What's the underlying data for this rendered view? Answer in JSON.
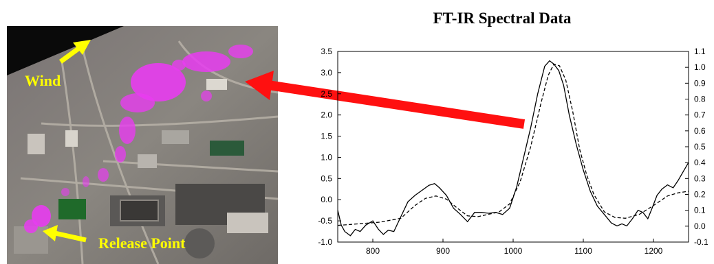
{
  "figure": {
    "chart_title": "FT-IR Spectral Data",
    "photo": {
      "wind_label": "Wind",
      "release_label": "Release Point"
    },
    "colors": {
      "plume": "#e83cf0",
      "labels": "#ffff00",
      "pointer_arrow": "#ff1010"
    }
  },
  "chart_data": {
    "type": "line",
    "title": "FT-IR Spectral Data",
    "xlabel": "",
    "ylabel": "",
    "xlim": [
      750,
      1250
    ],
    "ylim": [
      -1.0,
      3.5
    ],
    "y2lim": [
      -0.1,
      1.1
    ],
    "x_ticks": [
      800,
      900,
      1000,
      1100,
      1200
    ],
    "y_ticks": [
      -1.0,
      -0.5,
      0.0,
      0.5,
      1.0,
      1.5,
      2.0,
      2.5,
      3.0,
      3.5
    ],
    "y2_ticks": [
      -0.1,
      0.0,
      0.1,
      0.2,
      0.3,
      0.4,
      0.5,
      0.6,
      0.7,
      0.8,
      0.9,
      1.0,
      1.1
    ],
    "grid": false,
    "series": [
      {
        "axis": "left",
        "style": "solid",
        "x": [
          750,
          755,
          760,
          768,
          775,
          782,
          790,
          800,
          808,
          815,
          822,
          830,
          840,
          850,
          860,
          870,
          880,
          888,
          895,
          905,
          915,
          925,
          935,
          945,
          955,
          965,
          975,
          985,
          995,
          1005,
          1015,
          1025,
          1035,
          1045,
          1052,
          1058,
          1065,
          1072,
          1080,
          1090,
          1100,
          1110,
          1120,
          1130,
          1140,
          1148,
          1155,
          1162,
          1170,
          1178,
          1185,
          1192,
          1198,
          1205,
          1212,
          1220,
          1228,
          1235,
          1242,
          1250
        ],
        "y": [
          -0.25,
          -0.6,
          -0.75,
          -0.85,
          -0.7,
          -0.75,
          -0.6,
          -0.5,
          -0.7,
          -0.82,
          -0.72,
          -0.75,
          -0.4,
          -0.05,
          0.1,
          0.22,
          0.34,
          0.38,
          0.28,
          0.1,
          -0.2,
          -0.35,
          -0.52,
          -0.3,
          -0.3,
          -0.32,
          -0.3,
          -0.35,
          -0.2,
          0.3,
          1.0,
          1.7,
          2.5,
          3.15,
          3.28,
          3.2,
          3.05,
          2.7,
          2.0,
          1.3,
          0.7,
          0.2,
          -0.15,
          -0.35,
          -0.55,
          -0.62,
          -0.57,
          -0.62,
          -0.45,
          -0.25,
          -0.3,
          -0.45,
          -0.2,
          0.1,
          0.25,
          0.35,
          0.28,
          0.45,
          0.65,
          0.88
        ]
      },
      {
        "axis": "right",
        "style": "dashed",
        "x": [
          750,
          780,
          810,
          840,
          860,
          875,
          890,
          905,
          920,
          935,
          950,
          965,
          980,
          995,
          1010,
          1025,
          1040,
          1050,
          1058,
          1066,
          1075,
          1085,
          1095,
          1105,
          1115,
          1130,
          1145,
          1160,
          1180,
          1200,
          1220,
          1235,
          1250
        ],
        "y": [
          0.005,
          0.015,
          0.025,
          0.05,
          0.13,
          0.175,
          0.19,
          0.17,
          0.115,
          0.065,
          0.06,
          0.075,
          0.09,
          0.14,
          0.28,
          0.5,
          0.78,
          0.95,
          1.02,
          1.01,
          0.92,
          0.72,
          0.48,
          0.32,
          0.2,
          0.09,
          0.055,
          0.05,
          0.075,
          0.13,
          0.19,
          0.21,
          0.22
        ]
      }
    ]
  }
}
